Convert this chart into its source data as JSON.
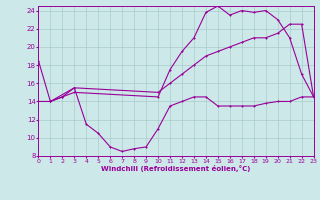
{
  "xlabel": "Windchill (Refroidissement éolien,°C)",
  "bg_color": "#cce8e8",
  "line_color": "#990099",
  "grid_color": "#aacccc",
  "xmin": 0,
  "xmax": 23,
  "ymin": 8,
  "ymax": 24.5,
  "line1_x": [
    0,
    1,
    2,
    3,
    10,
    11,
    12,
    13,
    14,
    15,
    16,
    17,
    18,
    19,
    20,
    21,
    22,
    23
  ],
  "line1_y": [
    18.5,
    14.0,
    14.5,
    15.0,
    14.5,
    17.5,
    19.5,
    21.0,
    23.8,
    24.5,
    23.5,
    24.0,
    23.8,
    24.0,
    23.0,
    21.0,
    17.0,
    14.5
  ],
  "line2_x": [
    0,
    1,
    2,
    3,
    10,
    11,
    12,
    13,
    14,
    15,
    16,
    17,
    18,
    19,
    20,
    21,
    22,
    23
  ],
  "line2_y": [
    14.0,
    14.0,
    14.5,
    15.5,
    15.0,
    16.0,
    17.0,
    18.0,
    19.0,
    19.5,
    20.0,
    20.5,
    21.0,
    21.0,
    21.5,
    22.5,
    22.5,
    14.5
  ],
  "line3_x": [
    1,
    3,
    4,
    5,
    6,
    7,
    8,
    9,
    10,
    11,
    12,
    13,
    14,
    15,
    16,
    17,
    18,
    19,
    20,
    21,
    22,
    23
  ],
  "line3_y": [
    14.0,
    15.5,
    11.5,
    10.5,
    9.0,
    8.5,
    8.8,
    9.0,
    11.0,
    13.5,
    14.0,
    14.5,
    14.5,
    13.5,
    13.5,
    13.5,
    13.5,
    13.8,
    14.0,
    14.0,
    14.5,
    14.5
  ],
  "yticks": [
    8,
    10,
    12,
    14,
    16,
    18,
    20,
    22,
    24
  ],
  "xticks": [
    0,
    1,
    2,
    3,
    4,
    5,
    6,
    7,
    8,
    9,
    10,
    11,
    12,
    13,
    14,
    15,
    16,
    17,
    18,
    19,
    20,
    21,
    22,
    23
  ]
}
